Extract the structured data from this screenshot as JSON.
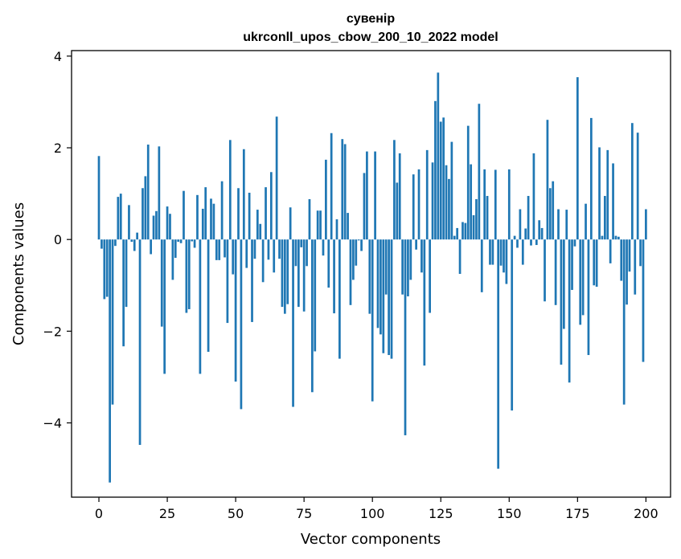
{
  "chart_data": {
    "type": "bar",
    "title": "сувенір",
    "subtitle": "ukrconll_upos_cbow_200_10_2022 model",
    "xlabel": "Vector components",
    "ylabel": "Components values",
    "xlim": [
      -10,
      209
    ],
    "ylim": [
      -5.62,
      4.12
    ],
    "xticks": [
      0,
      25,
      50,
      75,
      100,
      125,
      150,
      175,
      200
    ],
    "yticks": [
      -4,
      -2,
      0,
      2,
      4
    ],
    "xtick_labels": [
      "0",
      "25",
      "50",
      "75",
      "100",
      "125",
      "150",
      "175",
      "200"
    ],
    "ytick_labels": [
      "−4",
      "−2",
      "0",
      "2",
      "4"
    ],
    "bar_color": "#1f77b4",
    "values": [
      1.82,
      -0.2,
      -1.3,
      -1.25,
      -5.3,
      -3.6,
      -0.14,
      0.93,
      1.0,
      -2.33,
      -1.47,
      0.75,
      -0.05,
      -0.25,
      0.15,
      -4.48,
      1.12,
      1.38,
      2.07,
      -0.32,
      0.52,
      0.62,
      2.03,
      -1.9,
      -2.93,
      0.72,
      0.56,
      -0.88,
      -0.4,
      -0.05,
      -0.08,
      1.06,
      -1.6,
      -1.52,
      -0.04,
      -0.18,
      0.97,
      -2.93,
      0.67,
      1.14,
      -2.45,
      0.89,
      0.78,
      -0.45,
      -0.45,
      1.27,
      -0.39,
      -1.82,
      2.17,
      -0.76,
      -3.1,
      1.12,
      -3.7,
      1.97,
      -0.62,
      1.02,
      -1.8,
      -0.42,
      0.65,
      0.34,
      -0.93,
      1.14,
      -0.44,
      1.47,
      -0.72,
      2.68,
      -0.42,
      -1.47,
      -1.62,
      -1.41,
      0.7,
      -3.65,
      -0.58,
      -1.47,
      -0.17,
      -1.57,
      -0.58,
      0.88,
      -3.33,
      -2.44,
      0.63,
      0.63,
      -0.35,
      1.74,
      -1.05,
      2.32,
      -1.61,
      0.44,
      -2.6,
      2.19,
      2.08,
      0.58,
      -1.43,
      -0.88,
      -0.57,
      -0.02,
      -0.25,
      1.45,
      1.92,
      -1.62,
      -3.53,
      1.92,
      -1.93,
      -2.07,
      -2.48,
      -1.2,
      -2.52,
      -2.6,
      2.17,
      1.24,
      1.88,
      -1.2,
      -4.27,
      -1.24,
      -0.88,
      1.42,
      -0.22,
      1.53,
      -0.72,
      -2.75,
      1.95,
      -1.6,
      1.68,
      3.02,
      3.64,
      2.57,
      2.66,
      1.62,
      1.32,
      2.13,
      0.08,
      0.25,
      -0.75,
      0.38,
      0.36,
      2.48,
      1.64,
      0.53,
      0.88,
      2.96,
      -1.15,
      1.53,
      0.95,
      -0.55,
      -0.55,
      1.52,
      -5.0,
      -0.57,
      -0.72,
      -0.97,
      1.53,
      -3.73,
      0.08,
      -0.18,
      0.66,
      -0.55,
      0.24,
      0.95,
      -0.13,
      1.88,
      -0.12,
      0.42,
      0.25,
      -1.35,
      2.61,
      1.12,
      1.27,
      -1.43,
      0.66,
      -2.73,
      -1.95,
      0.65,
      -3.12,
      -1.1,
      -0.15,
      3.54,
      -1.86,
      -1.65,
      0.78,
      -2.52,
      2.65,
      -1.0,
      -1.03,
      2.01,
      0.08,
      0.95,
      1.95,
      -0.52,
      1.66,
      0.08,
      0.06,
      -0.9,
      -3.6,
      -1.42,
      -0.7,
      2.54,
      -1.2,
      2.33,
      -0.58,
      -2.67,
      0.66
    ]
  }
}
